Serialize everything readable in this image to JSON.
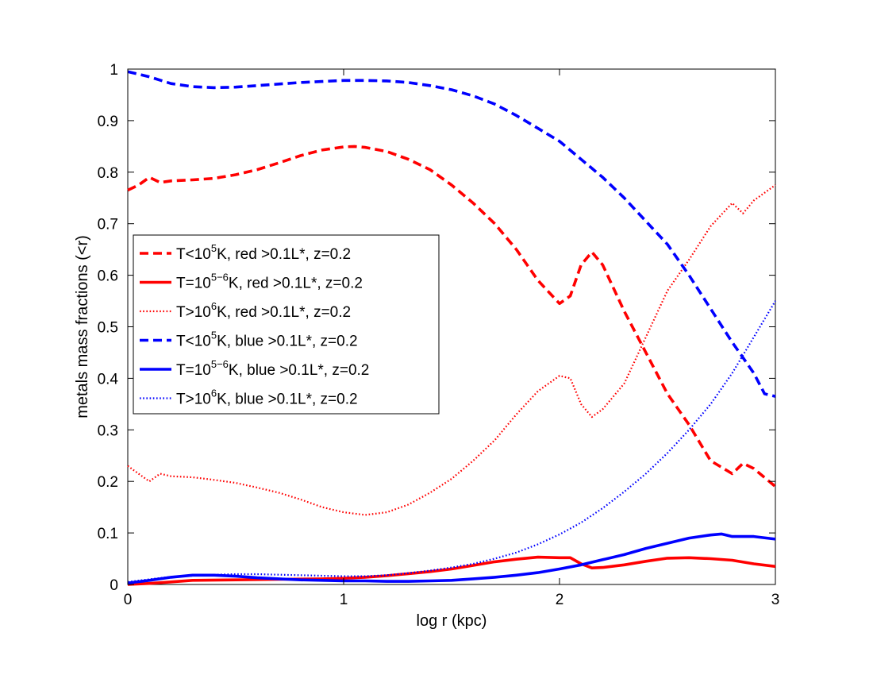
{
  "chart_data": {
    "type": "line",
    "title": "",
    "xlabel": "log r (kpc)",
    "ylabel": "metals mass fractions (<r)",
    "xlim": [
      0,
      3
    ],
    "ylim": [
      0,
      1
    ],
    "xticks": [
      0,
      1,
      2,
      3
    ],
    "yticks": [
      0,
      0.1,
      0.2,
      0.3,
      0.4,
      0.5,
      0.6,
      0.7,
      0.8,
      0.9,
      1
    ],
    "xtick_labels": [
      "0",
      "1",
      "2",
      "3"
    ],
    "ytick_labels": [
      "0",
      "0.1",
      "0.2",
      "0.3",
      "0.4",
      "0.5",
      "0.6",
      "0.7",
      "0.8",
      "0.9",
      "1"
    ],
    "grid": false,
    "legend_position": "left-middle",
    "series": [
      {
        "name": "T<10^5K, red >0.1L*, z=0.2",
        "legend": {
          "pre": "T<10",
          "sup": "5",
          "post": "K, red >0.1L*, z=0.2"
        },
        "color": "#ff0000",
        "style": "dashed",
        "x": [
          0,
          0.05,
          0.1,
          0.15,
          0.2,
          0.3,
          0.4,
          0.5,
          0.6,
          0.7,
          0.8,
          0.9,
          1.0,
          1.05,
          1.1,
          1.2,
          1.3,
          1.4,
          1.5,
          1.6,
          1.7,
          1.8,
          1.9,
          2.0,
          2.05,
          2.1,
          2.15,
          2.2,
          2.3,
          2.4,
          2.5,
          2.6,
          2.7,
          2.8,
          2.85,
          2.9,
          3.0
        ],
        "y": [
          0.765,
          0.775,
          0.79,
          0.78,
          0.783,
          0.785,
          0.788,
          0.795,
          0.805,
          0.818,
          0.832,
          0.843,
          0.849,
          0.85,
          0.848,
          0.84,
          0.825,
          0.805,
          0.775,
          0.74,
          0.7,
          0.65,
          0.59,
          0.545,
          0.56,
          0.62,
          0.645,
          0.62,
          0.53,
          0.45,
          0.37,
          0.31,
          0.24,
          0.215,
          0.235,
          0.225,
          0.19
        ]
      },
      {
        "name": "T=10^5-6K, red >0.1L*, z=0.2",
        "legend": {
          "pre": "T=10",
          "sup": "5−6",
          "post": "K, red >0.1L*, z=0.2"
        },
        "color": "#ff0000",
        "style": "solid",
        "x": [
          0,
          0.1,
          0.2,
          0.3,
          0.5,
          0.7,
          0.9,
          1.0,
          1.1,
          1.2,
          1.3,
          1.4,
          1.5,
          1.6,
          1.7,
          1.8,
          1.9,
          2.0,
          2.05,
          2.1,
          2.15,
          2.2,
          2.3,
          2.4,
          2.5,
          2.6,
          2.7,
          2.8,
          2.9,
          3.0
        ],
        "y": [
          0.0,
          0.002,
          0.005,
          0.008,
          0.009,
          0.01,
          0.011,
          0.012,
          0.014,
          0.017,
          0.021,
          0.025,
          0.03,
          0.037,
          0.044,
          0.049,
          0.053,
          0.052,
          0.052,
          0.04,
          0.032,
          0.033,
          0.038,
          0.045,
          0.051,
          0.052,
          0.05,
          0.047,
          0.04,
          0.035
        ]
      },
      {
        "name": "T>10^6K, red >0.1L*, z=0.2",
        "legend": {
          "pre": "T>10",
          "sup": "6",
          "post": "K, red >0.1L*, z=0.2"
        },
        "color": "#ff0000",
        "style": "dotted",
        "x": [
          0,
          0.05,
          0.1,
          0.15,
          0.2,
          0.3,
          0.4,
          0.5,
          0.6,
          0.7,
          0.8,
          0.9,
          1.0,
          1.1,
          1.2,
          1.3,
          1.4,
          1.5,
          1.6,
          1.7,
          1.8,
          1.9,
          2.0,
          2.05,
          2.1,
          2.15,
          2.2,
          2.3,
          2.4,
          2.5,
          2.6,
          2.7,
          2.8,
          2.85,
          2.9,
          3.0
        ],
        "y": [
          0.23,
          0.215,
          0.2,
          0.215,
          0.21,
          0.208,
          0.203,
          0.197,
          0.188,
          0.178,
          0.165,
          0.15,
          0.14,
          0.135,
          0.14,
          0.155,
          0.178,
          0.205,
          0.24,
          0.28,
          0.33,
          0.375,
          0.405,
          0.4,
          0.35,
          0.325,
          0.34,
          0.39,
          0.48,
          0.57,
          0.63,
          0.695,
          0.74,
          0.72,
          0.745,
          0.775
        ]
      },
      {
        "name": "T<10^5K, blue >0.1L*, z=0.2",
        "legend": {
          "pre": "T<10",
          "sup": "5",
          "post": "K, blue >0.1L*, z=0.2"
        },
        "color": "#0000ff",
        "style": "dashed",
        "x": [
          0,
          0.1,
          0.2,
          0.3,
          0.4,
          0.5,
          0.6,
          0.7,
          0.8,
          0.9,
          1.0,
          1.1,
          1.2,
          1.3,
          1.4,
          1.5,
          1.6,
          1.7,
          1.8,
          1.9,
          2.0,
          2.1,
          2.2,
          2.3,
          2.4,
          2.5,
          2.6,
          2.7,
          2.8,
          2.85,
          2.9,
          2.95,
          3.0
        ],
        "y": [
          0.995,
          0.985,
          0.972,
          0.966,
          0.964,
          0.965,
          0.968,
          0.971,
          0.974,
          0.976,
          0.978,
          0.978,
          0.977,
          0.974,
          0.968,
          0.96,
          0.948,
          0.932,
          0.91,
          0.885,
          0.86,
          0.825,
          0.79,
          0.75,
          0.705,
          0.66,
          0.6,
          0.535,
          0.47,
          0.44,
          0.41,
          0.37,
          0.365
        ]
      },
      {
        "name": "T=10^5-6K, blue >0.1L*, z=0.2",
        "legend": {
          "pre": "T=10",
          "sup": "5−6",
          "post": "K, blue >0.1L*, z=0.2"
        },
        "color": "#0000ff",
        "style": "solid",
        "x": [
          0,
          0.1,
          0.2,
          0.3,
          0.4,
          0.5,
          0.6,
          0.7,
          0.8,
          0.9,
          1.0,
          1.1,
          1.2,
          1.3,
          1.4,
          1.5,
          1.6,
          1.7,
          1.8,
          1.9,
          2.0,
          2.1,
          2.2,
          2.3,
          2.4,
          2.5,
          2.6,
          2.7,
          2.75,
          2.8,
          2.9,
          3.0
        ],
        "y": [
          0.003,
          0.008,
          0.014,
          0.018,
          0.018,
          0.016,
          0.013,
          0.011,
          0.009,
          0.008,
          0.007,
          0.007,
          0.006,
          0.006,
          0.007,
          0.008,
          0.011,
          0.014,
          0.018,
          0.023,
          0.03,
          0.038,
          0.048,
          0.058,
          0.07,
          0.08,
          0.09,
          0.096,
          0.098,
          0.093,
          0.093,
          0.088
        ]
      },
      {
        "name": "T>10^6K, blue >0.1L*, z=0.2",
        "legend": {
          "pre": "T>10",
          "sup": "6",
          "post": "K, blue >0.1L*, z=0.2"
        },
        "color": "#0000ff",
        "style": "dotted",
        "x": [
          0,
          0.1,
          0.2,
          0.3,
          0.4,
          0.5,
          0.6,
          0.7,
          0.8,
          0.9,
          1.0,
          1.1,
          1.2,
          1.3,
          1.4,
          1.5,
          1.6,
          1.7,
          1.8,
          1.9,
          2.0,
          2.1,
          2.2,
          2.3,
          2.4,
          2.5,
          2.6,
          2.7,
          2.8,
          2.9,
          3.0
        ],
        "y": [
          0.005,
          0.01,
          0.015,
          0.017,
          0.019,
          0.02,
          0.02,
          0.019,
          0.018,
          0.017,
          0.016,
          0.016,
          0.018,
          0.022,
          0.027,
          0.033,
          0.04,
          0.05,
          0.062,
          0.078,
          0.097,
          0.12,
          0.148,
          0.18,
          0.215,
          0.255,
          0.3,
          0.35,
          0.41,
          0.48,
          0.55
        ]
      }
    ]
  }
}
